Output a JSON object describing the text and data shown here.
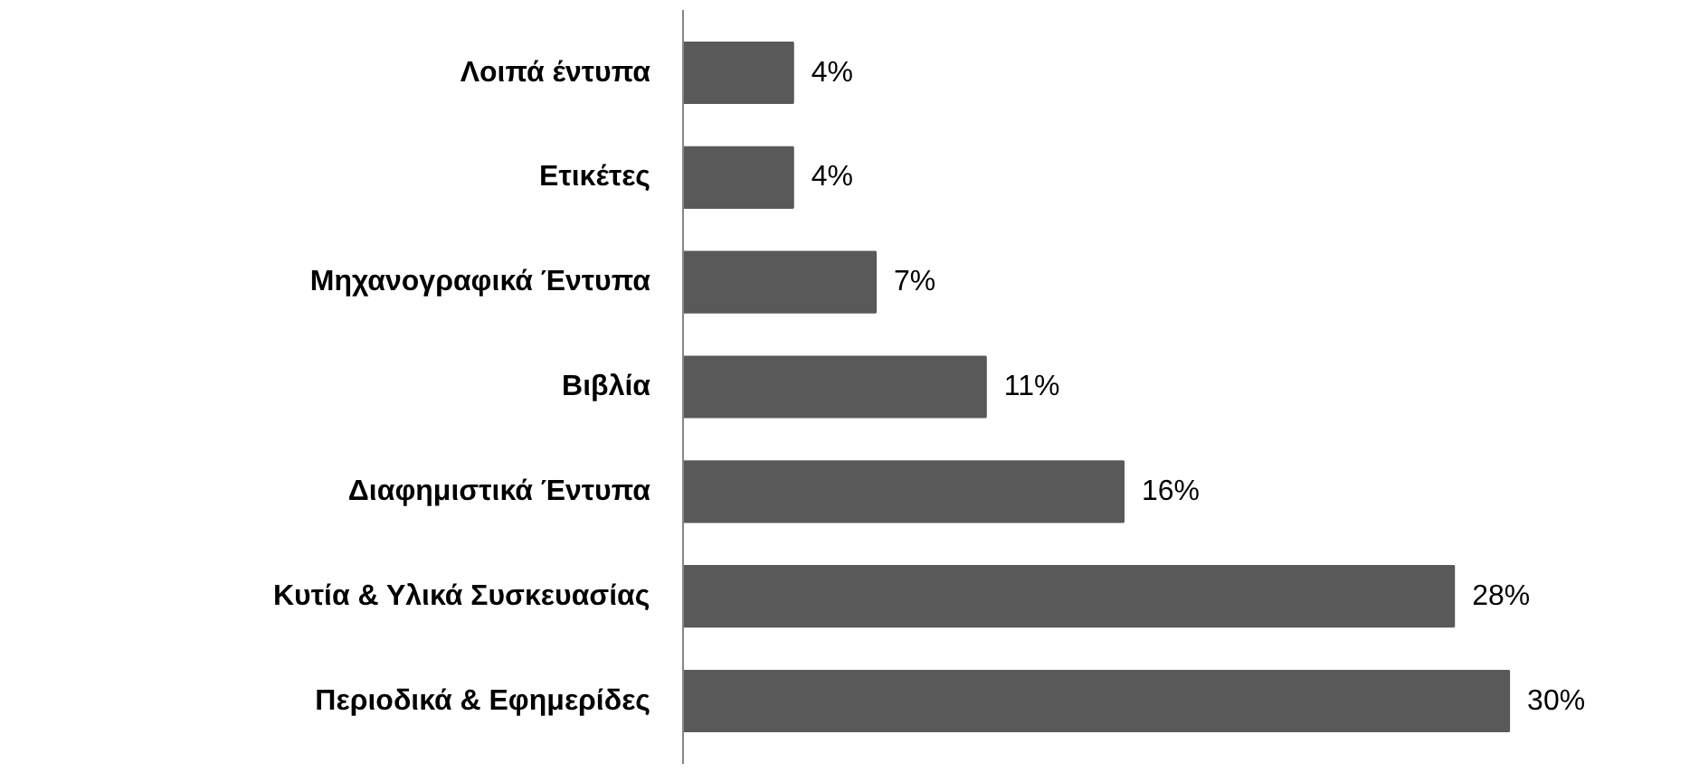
{
  "chart_data": {
    "type": "bar",
    "orientation": "horizontal",
    "categories": [
      "Λοιπά έντυπα",
      "Ετικέτες",
      "Μηχανογραφικά Έντυπα",
      "Βιβλία",
      "Διαφημιστικά Έντυπα",
      "Κυτία & Υλικά Συσκευασίας",
      "Περιοδικά & Εφημερίδες"
    ],
    "values": [
      4,
      4,
      7,
      11,
      16,
      28,
      30
    ],
    "value_labels": [
      "4%",
      "4%",
      "7%",
      "11%",
      "16%",
      "28%",
      "30%"
    ],
    "color": "#595959",
    "grid": false
  }
}
